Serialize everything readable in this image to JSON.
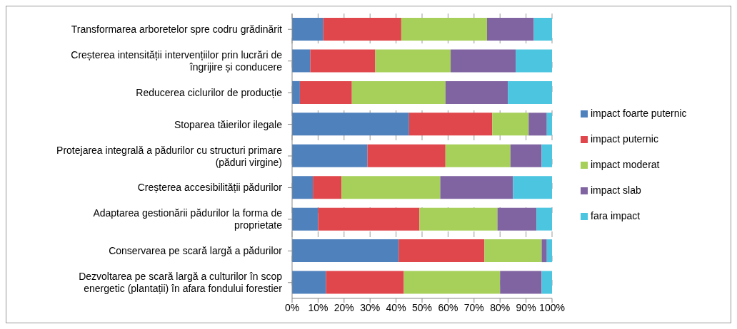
{
  "chart_data": {
    "type": "bar",
    "orientation": "horizontal",
    "stacked": true,
    "categories": [
      "Transformarea arboretelor spre codru grădinărit",
      "Creșterea intensității intervențiilor prin lucrări de îngrijire și conducere",
      "Reducerea ciclurilor de producție",
      "Stoparea tăierilor ilegale",
      "Protejarea integrală a pădurilor cu structuri primare (păduri virgine)",
      "Creșterea accesibilității pădurilor",
      "Adaptarea gestionării pădurilor la forma de proprietate",
      "Conservarea pe scară largă a pădurilor",
      "Dezvoltarea pe scară largă a culturilor în scop energetic (plantații) în afara fondului forestier"
    ],
    "series": [
      {
        "name": "impact foarte puternic",
        "color": "#4f81bd",
        "values": [
          12,
          7,
          3,
          45,
          29,
          8,
          10,
          41,
          13
        ]
      },
      {
        "name": "impact puternic",
        "color": "#e0474c",
        "values": [
          30,
          25,
          20,
          32,
          30,
          11,
          39,
          33,
          30
        ]
      },
      {
        "name": "impact moderat",
        "color": "#a6d05a",
        "values": [
          33,
          29,
          36,
          14,
          25,
          38,
          30,
          22,
          37
        ]
      },
      {
        "name": "impact slab",
        "color": "#8064a2",
        "values": [
          18,
          25,
          24,
          7,
          12,
          28,
          15,
          2,
          16
        ]
      },
      {
        "name": "fara impact",
        "color": "#4bc5e0",
        "values": [
          7,
          14,
          17,
          2,
          4,
          15,
          6,
          2,
          4
        ]
      }
    ],
    "xlim": [
      0,
      100
    ],
    "xticks": [
      {
        "value": 0,
        "label": "0%"
      },
      {
        "value": 10,
        "label": "10%"
      },
      {
        "value": 20,
        "label": "20%"
      },
      {
        "value": 30,
        "label": "30%"
      },
      {
        "value": 40,
        "label": "40%"
      },
      {
        "value": 50,
        "label": "50%"
      },
      {
        "value": 60,
        "label": "60%"
      },
      {
        "value": 70,
        "label": "70%"
      },
      {
        "value": 80,
        "label": "80%"
      },
      {
        "value": 90,
        "label": "90%"
      },
      {
        "value": 100,
        "label": "100%"
      }
    ],
    "grid": "x",
    "legend": "right"
  }
}
